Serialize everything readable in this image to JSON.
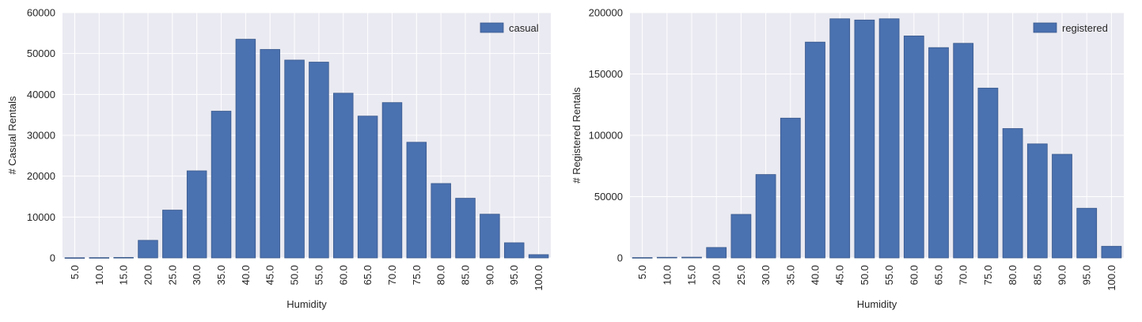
{
  "colors": {
    "bar": "#4a71b0",
    "bar_edge": "#3a5a8c",
    "plot_bg": "#eaeaf2",
    "grid": "#ffffff",
    "text": "#262626"
  },
  "chart_data": [
    {
      "type": "bar",
      "xlabel": "Humidity",
      "ylabel": "# Casual Rentals",
      "ylim": [
        0,
        60000
      ],
      "yticks": [
        "0",
        "10000",
        "20000",
        "30000",
        "40000",
        "50000",
        "60000"
      ],
      "grid": true,
      "legend": "top-right",
      "categories": [
        "5.0",
        "10.0",
        "15.0",
        "20.0",
        "25.0",
        "30.0",
        "35.0",
        "40.0",
        "45.0",
        "50.0",
        "55.0",
        "60.0",
        "65.0",
        "70.0",
        "75.0",
        "80.0",
        "85.0",
        "90.0",
        "95.0",
        "100.0"
      ],
      "series": [
        {
          "name": "casual",
          "values": [
            50,
            80,
            120,
            4300,
            11700,
            21300,
            35900,
            53500,
            51000,
            48400,
            47900,
            40300,
            34700,
            38000,
            28300,
            18200,
            14600,
            10700,
            3700,
            800
          ]
        }
      ]
    },
    {
      "type": "bar",
      "xlabel": "Humidity",
      "ylabel": "# Registered Rentals",
      "ylim": [
        0,
        200000
      ],
      "yticks": [
        "0",
        "50000",
        "100000",
        "150000",
        "200000"
      ],
      "grid": true,
      "legend": "top-right",
      "categories": [
        "5.0",
        "10.0",
        "15.0",
        "20.0",
        "25.0",
        "30.0",
        "35.0",
        "40.0",
        "45.0",
        "50.0",
        "55.0",
        "60.0",
        "65.0",
        "70.0",
        "75.0",
        "80.0",
        "85.0",
        "90.0",
        "95.0",
        "100.0"
      ],
      "series": [
        {
          "name": "registered",
          "values": [
            300,
            500,
            600,
            8500,
            35500,
            68000,
            114000,
            176000,
            195000,
            194000,
            195000,
            181000,
            171500,
            175000,
            138500,
            105500,
            93000,
            84500,
            40500,
            9500
          ]
        }
      ]
    }
  ]
}
